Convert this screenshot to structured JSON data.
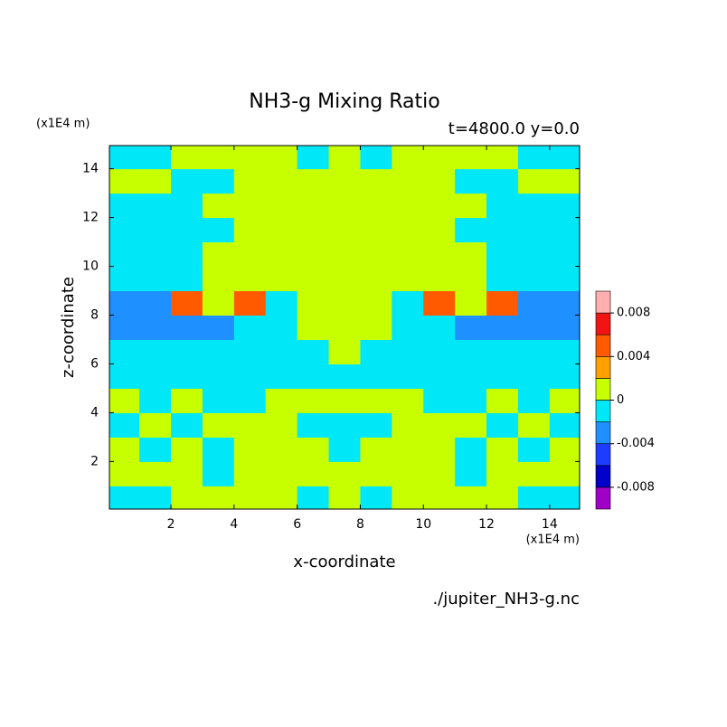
{
  "chart_data": {
    "type": "contour",
    "title": "NH3-g Mixing Ratio",
    "subtitle": "t=4800.0 y=0.0",
    "x_label": "x-coordinate",
    "y_label": "z-coordinate",
    "x_unit": "(x1E4 m)",
    "y_unit": "(x1E4 m)",
    "footer": "./jupiter_NH3-g.nc",
    "xlim": [
      0.05,
      14.95
    ],
    "ylim": [
      0.05,
      14.95
    ],
    "xticks": [
      2,
      4,
      6,
      8,
      10,
      12,
      14
    ],
    "yticks": [
      2,
      4,
      6,
      8,
      10,
      12,
      14
    ],
    "x": [
      0.5,
      1.5,
      2.5,
      3.5,
      4.5,
      5.5,
      6.5,
      7.5,
      8.5,
      9.5,
      10.5,
      11.5,
      12.5,
      13.5,
      14.5
    ],
    "y": [
      0.5,
      1.5,
      2.5,
      3.5,
      4.5,
      5.5,
      6.5,
      7.5,
      8.5,
      9.5,
      10.5,
      11.5,
      12.5,
      13.5,
      14.5
    ],
    "z": [
      [
        -0.001,
        -0.001,
        0.001,
        0.001,
        0.001,
        0.001,
        -0.001,
        0.001,
        -0.001,
        0.001,
        0.001,
        0.001,
        0.001,
        -0.001,
        -0.001
      ],
      [
        0.001,
        0.001,
        0.001,
        -0.001,
        0.001,
        0.001,
        0.001,
        0.001,
        0.001,
        0.001,
        0.001,
        -0.001,
        0.001,
        0.001,
        0.001
      ],
      [
        0.001,
        -0.001,
        0.001,
        -0.001,
        0.001,
        0.001,
        0.001,
        -0.001,
        0.001,
        0.001,
        0.001,
        -0.001,
        0.001,
        -0.001,
        0.001
      ],
      [
        -0.001,
        0.001,
        -0.001,
        0.001,
        0.001,
        0.001,
        -0.001,
        -0.001,
        -0.001,
        0.001,
        0.001,
        0.001,
        -0.001,
        0.001,
        -0.001
      ],
      [
        0.001,
        -0.001,
        0.001,
        -0.001,
        -0.001,
        0.001,
        0.001,
        0.001,
        0.001,
        0.001,
        -0.001,
        -0.001,
        0.001,
        -0.001,
        0.001
      ],
      [
        -0.001,
        -0.001,
        -0.001,
        -0.001,
        -0.001,
        -0.001,
        -0.001,
        -0.001,
        -0.001,
        -0.001,
        -0.001,
        -0.001,
        -0.001,
        -0.001,
        -0.001
      ],
      [
        -0.001,
        -0.001,
        -0.001,
        -0.001,
        -0.001,
        -0.001,
        -0.001,
        0.001,
        -0.001,
        -0.001,
        -0.001,
        -0.001,
        -0.001,
        -0.001,
        -0.001
      ],
      [
        -0.003,
        -0.003,
        -0.003,
        -0.003,
        -0.001,
        -0.001,
        0.001,
        0.001,
        0.001,
        -0.001,
        -0.001,
        -0.003,
        -0.003,
        -0.003,
        -0.003
      ],
      [
        -0.003,
        -0.003,
        0.005,
        0.001,
        0.005,
        -0.001,
        0.001,
        0.001,
        0.001,
        -0.001,
        0.005,
        0.001,
        0.005,
        -0.003,
        -0.003
      ],
      [
        -0.001,
        -0.001,
        -0.001,
        0.001,
        0.001,
        0.001,
        0.001,
        0.001,
        0.001,
        0.001,
        0.001,
        0.001,
        -0.001,
        -0.001,
        -0.001
      ],
      [
        -0.001,
        -0.001,
        -0.001,
        0.001,
        0.001,
        0.001,
        0.001,
        0.001,
        0.001,
        0.001,
        0.001,
        0.001,
        -0.001,
        -0.001,
        -0.001
      ],
      [
        -0.001,
        -0.001,
        -0.001,
        -0.001,
        0.001,
        0.001,
        0.001,
        0.001,
        0.001,
        0.001,
        0.001,
        -0.001,
        -0.001,
        -0.001,
        -0.001
      ],
      [
        -0.001,
        -0.001,
        -0.001,
        0.001,
        0.001,
        0.001,
        0.001,
        0.001,
        0.001,
        0.001,
        0.001,
        0.001,
        -0.001,
        -0.001,
        -0.001
      ],
      [
        0.001,
        0.001,
        -0.001,
        -0.001,
        0.001,
        0.001,
        0.001,
        0.001,
        0.001,
        0.001,
        0.001,
        -0.001,
        -0.001,
        0.001,
        0.001
      ],
      [
        -0.001,
        -0.001,
        0.001,
        0.001,
        0.001,
        0.001,
        -0.001,
        0.001,
        -0.001,
        0.001,
        0.001,
        0.001,
        0.001,
        -0.001,
        -0.001
      ]
    ],
    "levels": [
      -0.008,
      -0.006,
      -0.004,
      -0.002,
      0,
      0.002,
      0.004,
      0.006,
      0.008
    ],
    "colors": [
      "#a000c8",
      "#0000c8",
      "#1e3cff",
      "#1e90ff",
      "#00e8f8",
      "#c8ff00",
      "#ffa000",
      "#ff5a00",
      "#f01414",
      "#ffafaf"
    ],
    "colorbar_ticks": [
      0.008,
      0.004,
      0,
      -0.004,
      -0.008
    ]
  }
}
